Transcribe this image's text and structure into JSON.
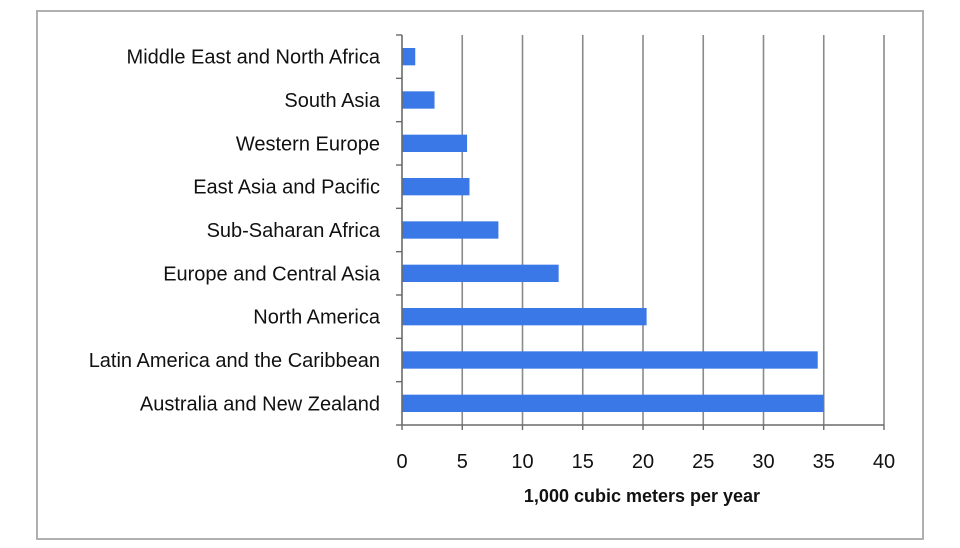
{
  "chart_data": {
    "type": "bar",
    "orientation": "horizontal",
    "categories": [
      "Middle East and North Africa",
      "South Asia",
      "Western Europe",
      "East Asia and Pacific",
      "Sub-Saharan Africa",
      "Europe and Central Asia",
      "North America",
      "Latin America and the Caribbean",
      "Australia and New Zealand"
    ],
    "values": [
      1.1,
      2.7,
      5.4,
      5.6,
      8.0,
      13.0,
      20.3,
      34.5,
      35.0
    ],
    "title": "",
    "xlabel": "1,000 cubic meters per year",
    "ylabel": "",
    "xlim": [
      0,
      40
    ],
    "xticks": [
      0,
      5,
      10,
      15,
      20,
      25,
      30,
      35,
      40
    ],
    "grid": "vertical",
    "legend": "none",
    "bar_color": "#3a78e8"
  }
}
